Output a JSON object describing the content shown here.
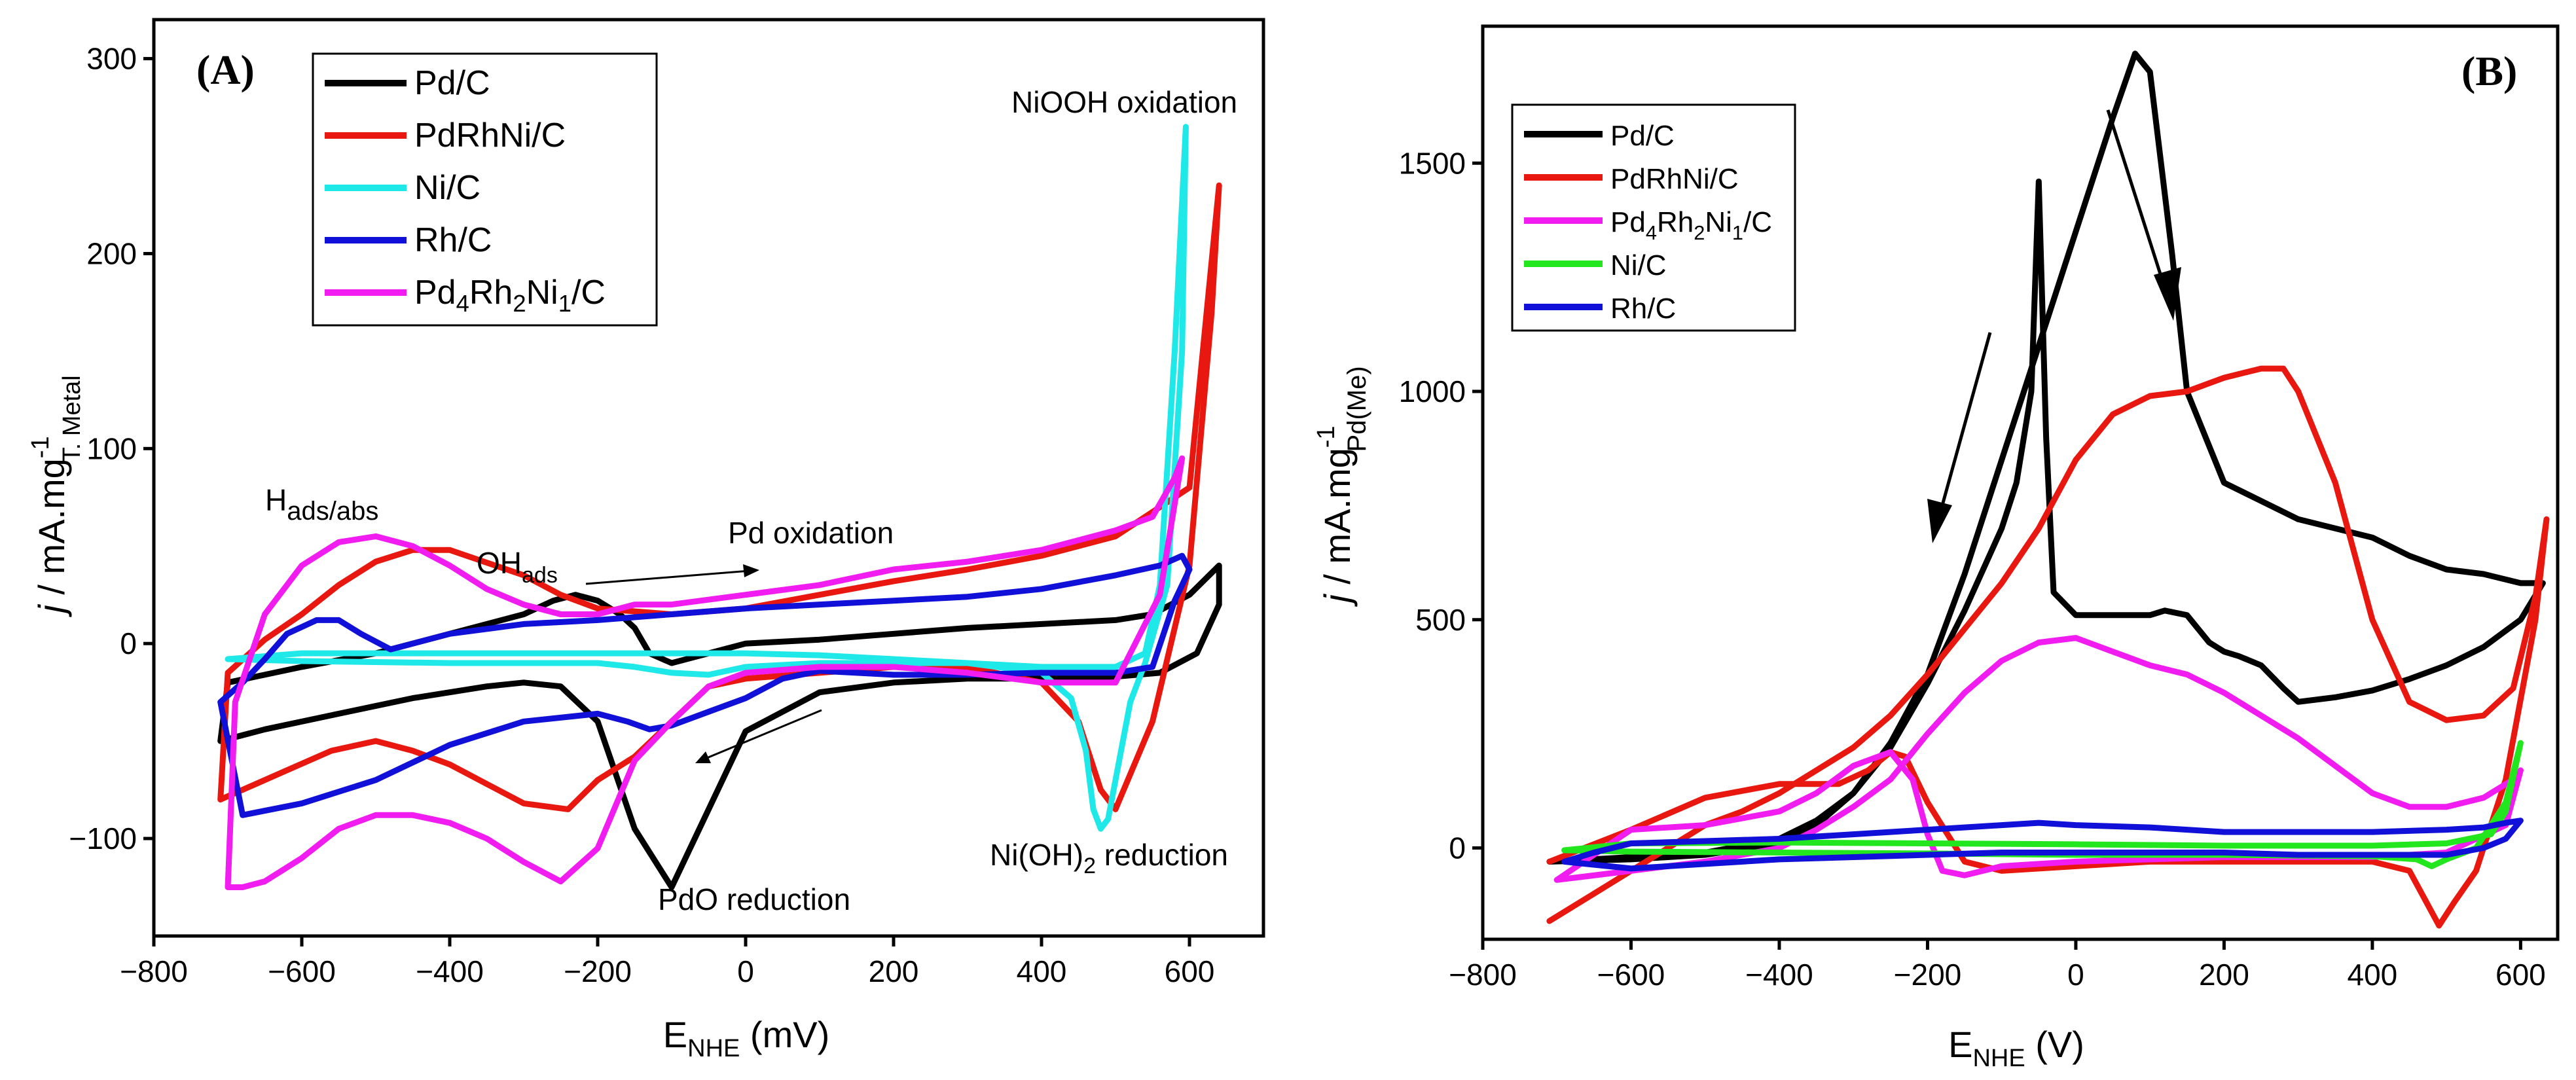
{
  "chart_data": [
    {
      "panel": "(A)",
      "type": "line",
      "xlabel": "E",
      "xlabel_sub": "NHE",
      "xlabel_unit": " (mV)",
      "ylabel_italic": "j",
      "ylabel": " / mA.mg",
      "ylabel_sup": "-1",
      "ylabel_sub": "T. Metal",
      "xlim": [
        -800,
        700
      ],
      "ylim": [
        -150,
        320
      ],
      "xticks": [
        -800,
        -600,
        -400,
        -200,
        0,
        200,
        400,
        600
      ],
      "yticks": [
        -100,
        0,
        100,
        200,
        300
      ],
      "ytick_labels": [
        "−100",
        "0",
        "100",
        "200",
        "300"
      ],
      "xtick_labels": [
        "−800",
        "−600",
        "−400",
        "−200",
        "0",
        "200",
        "400",
        "600"
      ],
      "legend": [
        {
          "name": "Pd/C",
          "color": "#000000"
        },
        {
          "name": "PdRhNi/C",
          "color": "#e8170f"
        },
        {
          "name": "Ni/C",
          "color": "#1fe8e8"
        },
        {
          "name": "Rh/C",
          "color": "#1010d8"
        },
        {
          "name": "Pd",
          "sub1": "4",
          "mid1": "Rh",
          "sub2": "2",
          "mid2": "Ni",
          "sub3": "1",
          "tail": "/C",
          "color": "#f01cf0"
        }
      ],
      "annotations": {
        "hads": {
          "main": "H",
          "sub": "ads/abs"
        },
        "ohads": {
          "main": "OH",
          "sub": "ads"
        },
        "pd_oxidation": "Pd oxidation",
        "niooh_oxidation": "NiOOH oxidation",
        "pdo_reduction": "PdO reduction",
        "nioh2_reduction": {
          "pre": "Ni(OH)",
          "sub": "2",
          "post": " reduction"
        }
      },
      "series": [
        {
          "name": "Pd/C",
          "color": "#000000",
          "x": [
            -710,
            -650,
            -550,
            -450,
            -350,
            -300,
            -250,
            -200,
            -150,
            -100,
            -50,
            0,
            100,
            200,
            300,
            400,
            500,
            560,
            610,
            640,
            640,
            600,
            550,
            500,
            400,
            300,
            200,
            100,
            0,
            -50,
            -100,
            -130,
            -150,
            -170,
            -200,
            -230,
            -260,
            -300,
            -400,
            -500,
            -600,
            -700,
            -710
          ],
          "y": [
            -50,
            -44,
            -36,
            -28,
            -22,
            -20,
            -22,
            -40,
            -95,
            -125,
            -85,
            -45,
            -25,
            -20,
            -18,
            -18,
            -17,
            -15,
            -5,
            20,
            40,
            25,
            15,
            12,
            10,
            8,
            5,
            2,
            0,
            -5,
            -10,
            -5,
            8,
            15,
            22,
            25,
            22,
            15,
            5,
            -5,
            -12,
            -20,
            -50
          ]
        },
        {
          "name": "PdRhNi/C",
          "color": "#e8170f",
          "x": [
            -710,
            -680,
            -620,
            -560,
            -500,
            -450,
            -400,
            -350,
            -300,
            -240,
            -200,
            -150,
            -100,
            -50,
            0,
            100,
            200,
            300,
            400,
            450,
            480,
            500,
            550,
            600,
            630,
            640,
            600,
            500,
            400,
            300,
            200,
            100,
            0,
            -100,
            -200,
            -250,
            -300,
            -400,
            -450,
            -500,
            -550,
            -600,
            -650,
            -700,
            -710
          ],
          "y": [
            -80,
            -75,
            -65,
            -55,
            -50,
            -55,
            -62,
            -72,
            -82,
            -85,
            -70,
            -58,
            -40,
            -22,
            -18,
            -15,
            -12,
            -12,
            -20,
            -40,
            -75,
            -85,
            -40,
            40,
            170,
            235,
            80,
            55,
            45,
            38,
            32,
            25,
            18,
            15,
            18,
            25,
            35,
            48,
            48,
            42,
            30,
            15,
            2,
            -15,
            -80
          ]
        },
        {
          "name": "Ni/C",
          "color": "#1fe8e8",
          "x": [
            -700,
            -600,
            -400,
            -200,
            -150,
            -100,
            -50,
            0,
            100,
            200,
            300,
            400,
            440,
            460,
            470,
            480,
            490,
            500,
            520,
            540,
            570,
            590,
            595,
            580,
            560,
            540,
            500,
            400,
            300,
            200,
            100,
            0,
            -100,
            -200,
            -400,
            -600,
            -700
          ],
          "y": [
            -8,
            -9,
            -10,
            -10,
            -12,
            -15,
            -16,
            -12,
            -10,
            -10,
            -10,
            -15,
            -28,
            -55,
            -85,
            -95,
            -90,
            -70,
            -30,
            -10,
            30,
            150,
            265,
            150,
            30,
            -5,
            -12,
            -12,
            -10,
            -8,
            -6,
            -5,
            -5,
            -5,
            -5,
            -5,
            -8
          ]
        },
        {
          "name": "Rh/C",
          "color": "#1010d8",
          "x": [
            -710,
            -680,
            -650,
            -620,
            -580,
            -550,
            -520,
            -480,
            -400,
            -300,
            -200,
            -100,
            0,
            100,
            200,
            300,
            400,
            500,
            560,
            590,
            600,
            580,
            550,
            500,
            400,
            300,
            200,
            150,
            100,
            50,
            0,
            -50,
            -100,
            -130,
            -160,
            -200,
            -300,
            -400,
            -500,
            -600,
            -680,
            -710
          ],
          "y": [
            -30,
            -20,
            -8,
            5,
            12,
            12,
            5,
            -3,
            5,
            10,
            12,
            15,
            18,
            20,
            22,
            24,
            28,
            35,
            40,
            45,
            38,
            22,
            -12,
            -15,
            -15,
            -16,
            -16,
            -15,
            -14,
            -18,
            -28,
            -35,
            -42,
            -44,
            -40,
            -36,
            -40,
            -52,
            -70,
            -82,
            -88,
            -30
          ]
        },
        {
          "name": "Pd4Rh2Ni1/C",
          "color": "#f01cf0",
          "x": [
            -700,
            -680,
            -650,
            -600,
            -550,
            -500,
            -450,
            -400,
            -350,
            -300,
            -250,
            -200,
            -150,
            -100,
            -50,
            0,
            100,
            200,
            300,
            400,
            500,
            560,
            590,
            580,
            550,
            500,
            400,
            300,
            200,
            100,
            0,
            -100,
            -150,
            -200,
            -250,
            -300,
            -350,
            -400,
            -450,
            -500,
            -550,
            -600,
            -650,
            -690,
            -700
          ],
          "y": [
            -125,
            -125,
            -122,
            -110,
            -95,
            -88,
            -88,
            -92,
            -100,
            -112,
            -122,
            -105,
            -60,
            -40,
            -22,
            -15,
            -12,
            -12,
            -15,
            -20,
            -20,
            25,
            95,
            85,
            65,
            58,
            48,
            42,
            38,
            30,
            25,
            20,
            20,
            15,
            15,
            20,
            28,
            40,
            50,
            55,
            52,
            40,
            15,
            -30,
            -125
          ]
        }
      ]
    },
    {
      "panel": "(B)",
      "type": "line",
      "xlabel": "E",
      "xlabel_sub": "NHE",
      "xlabel_unit": " (V)",
      "ylabel_italic": "j",
      "ylabel": " / mA.mg",
      "ylabel_sup": "-1",
      "ylabel_sub": "Pd(Me)",
      "xlim": [
        -800,
        650
      ],
      "ylim": [
        -200,
        1800
      ],
      "xticks": [
        -800,
        -600,
        -400,
        -200,
        0,
        200,
        400,
        600
      ],
      "yticks": [
        0,
        500,
        1000,
        1500
      ],
      "ytick_labels": [
        "0",
        "500",
        "1000",
        "1500"
      ],
      "xtick_labels": [
        "−800",
        "−600",
        "−400",
        "−200",
        "0",
        "200",
        "400",
        "600"
      ],
      "legend": [
        {
          "name": "Pd/C",
          "color": "#000000"
        },
        {
          "name": "PdRhNi/C",
          "color": "#e8170f"
        },
        {
          "name": "Pd",
          "sub1": "4",
          "mid1": "Rh",
          "sub2": "2",
          "mid2": "Ni",
          "sub3": "1",
          "tail": "/C",
          "color": "#f01cf0"
        },
        {
          "name": "Ni/C",
          "color": "#22e61e"
        },
        {
          "name": "Rh/C",
          "color": "#1010d8"
        }
      ],
      "series": [
        {
          "name": "Pd/C",
          "color": "#000000",
          "x": [
            -710,
            -600,
            -500,
            -400,
            -350,
            -300,
            -250,
            -200,
            -150,
            -100,
            -50,
            0,
            50,
            80,
            100,
            130,
            150,
            200,
            300,
            400,
            450,
            500,
            550,
            600,
            630,
            600,
            550,
            500,
            450,
            400,
            350,
            300,
            280,
            250,
            220,
            200,
            180,
            150,
            120,
            100,
            50,
            0,
            -30,
            -40,
            -50,
            -60,
            -80,
            -100,
            -150,
            -200,
            -250,
            -300,
            -350,
            -400,
            -500,
            -600,
            -710
          ],
          "y": [
            -30,
            -20,
            -10,
            20,
            60,
            120,
            230,
            380,
            600,
            850,
            1100,
            1350,
            1600,
            1740,
            1700,
            1300,
            1000,
            800,
            720,
            680,
            640,
            610,
            600,
            580,
            580,
            500,
            440,
            400,
            370,
            345,
            330,
            320,
            350,
            400,
            420,
            430,
            450,
            510,
            520,
            510,
            510,
            510,
            560,
            900,
            1460,
            1000,
            800,
            700,
            520,
            360,
            220,
            120,
            50,
            10,
            -15,
            -25,
            -30
          ]
        },
        {
          "name": "PdRhNi/C",
          "color": "#e8170f",
          "x": [
            -710,
            -650,
            -600,
            -550,
            -500,
            -450,
            -400,
            -350,
            -300,
            -250,
            -200,
            -150,
            -100,
            -50,
            0,
            50,
            100,
            150,
            200,
            250,
            280,
            300,
            350,
            400,
            450,
            500,
            550,
            590,
            620,
            635,
            620,
            580,
            540,
            510,
            490,
            470,
            450,
            400,
            300,
            200,
            100,
            0,
            -50,
            -100,
            -150,
            -200,
            -230,
            -250,
            -280,
            -320,
            -400,
            -500,
            -600,
            -710
          ],
          "y": [
            -160,
            -100,
            -50,
            0,
            50,
            80,
            120,
            170,
            220,
            290,
            380,
            480,
            580,
            700,
            850,
            950,
            990,
            1000,
            1030,
            1050,
            1050,
            1000,
            800,
            500,
            320,
            280,
            290,
            350,
            550,
            720,
            500,
            150,
            -50,
            -120,
            -170,
            -110,
            -50,
            -30,
            -30,
            -30,
            -30,
            -40,
            -45,
            -50,
            -30,
            100,
            200,
            210,
            170,
            140,
            140,
            110,
            40,
            -30
          ]
        },
        {
          "name": "Pd4Rh2Ni1/C",
          "color": "#f01cf0",
          "x": [
            -700,
            -600,
            -500,
            -400,
            -350,
            -300,
            -250,
            -200,
            -150,
            -100,
            -50,
            0,
            50,
            100,
            150,
            200,
            250,
            300,
            350,
            400,
            450,
            500,
            550,
            590,
            600,
            580,
            500,
            400,
            300,
            200,
            100,
            0,
            -100,
            -150,
            -180,
            -200,
            -220,
            -250,
            -300,
            -350,
            -400,
            -500,
            -600,
            -700
          ],
          "y": [
            -70,
            -50,
            -30,
            0,
            40,
            90,
            150,
            250,
            340,
            410,
            450,
            460,
            430,
            400,
            380,
            340,
            290,
            240,
            180,
            120,
            90,
            90,
            110,
            150,
            170,
            50,
            -10,
            -20,
            -20,
            -20,
            -25,
            -30,
            -40,
            -60,
            -50,
            30,
            150,
            210,
            180,
            120,
            80,
            50,
            40,
            -70
          ]
        },
        {
          "name": "Ni/C",
          "color": "#22e61e",
          "x": [
            -690,
            -600,
            -400,
            -200,
            0,
            200,
            400,
            460,
            480,
            500,
            540,
            580,
            600,
            580,
            560,
            500,
            400,
            200,
            0,
            -200,
            -400,
            -600,
            -690
          ],
          "y": [
            -5,
            -8,
            -10,
            -12,
            -15,
            -15,
            -18,
            -25,
            -40,
            -25,
            0,
            100,
            230,
            80,
            30,
            10,
            5,
            5,
            8,
            10,
            12,
            10,
            -5
          ]
        },
        {
          "name": "Rh/C",
          "color": "#1010d8",
          "x": [
            -690,
            -650,
            -600,
            -500,
            -400,
            -300,
            -200,
            -100,
            -50,
            0,
            100,
            200,
            300,
            400,
            500,
            550,
            580,
            600,
            580,
            550,
            500,
            400,
            300,
            200,
            100,
            0,
            -100,
            -200,
            -300,
            -400,
            -500,
            -600,
            -690
          ],
          "y": [
            -30,
            -10,
            10,
            15,
            20,
            30,
            40,
            50,
            55,
            50,
            45,
            35,
            35,
            35,
            40,
            45,
            55,
            60,
            20,
            0,
            -15,
            -15,
            -15,
            -10,
            -10,
            -10,
            -10,
            -15,
            -20,
            -25,
            -35,
            -45,
            -30
          ]
        }
      ]
    }
  ]
}
